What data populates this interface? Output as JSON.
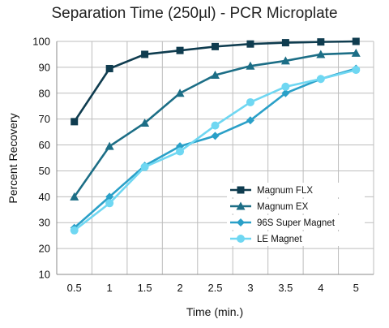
{
  "chart_data": {
    "type": "line",
    "title": "Separation Time (250µl) - PCR Microplate",
    "xlabel": "Time (min.)",
    "ylabel": "Percent Recovery",
    "x": [
      "0.5",
      "1",
      "1.5",
      "2",
      "2.5",
      "3",
      "3.5",
      "4",
      "5"
    ],
    "ylim": [
      10,
      100
    ],
    "yticks": [
      "10",
      "20",
      "30",
      "40",
      "50",
      "60",
      "70",
      "80",
      "90",
      "100"
    ],
    "grid": true,
    "legend_position": "bottom-right",
    "series": [
      {
        "name": "Magnum FLX",
        "marker": "square",
        "color": "#0f3c4f",
        "values": [
          69,
          89.5,
          95,
          96.5,
          98,
          99,
          99.5,
          99.8,
          100
        ]
      },
      {
        "name": "Magnum EX",
        "marker": "triangle",
        "color": "#1c6e86",
        "values": [
          40,
          59.5,
          68.5,
          80,
          87,
          90.5,
          92.5,
          95,
          95.5
        ]
      },
      {
        "name": "96S Super Magnet",
        "marker": "diamond",
        "color": "#2aa0c8",
        "values": [
          28,
          40,
          52,
          59.5,
          63.5,
          69.5,
          80,
          85.5,
          89.5
        ]
      },
      {
        "name": "LE Magnet",
        "marker": "circle",
        "color": "#6fd7f2",
        "values": [
          27,
          37.5,
          51.5,
          57.5,
          67.5,
          76.5,
          82.5,
          85.5,
          89
        ]
      }
    ]
  }
}
